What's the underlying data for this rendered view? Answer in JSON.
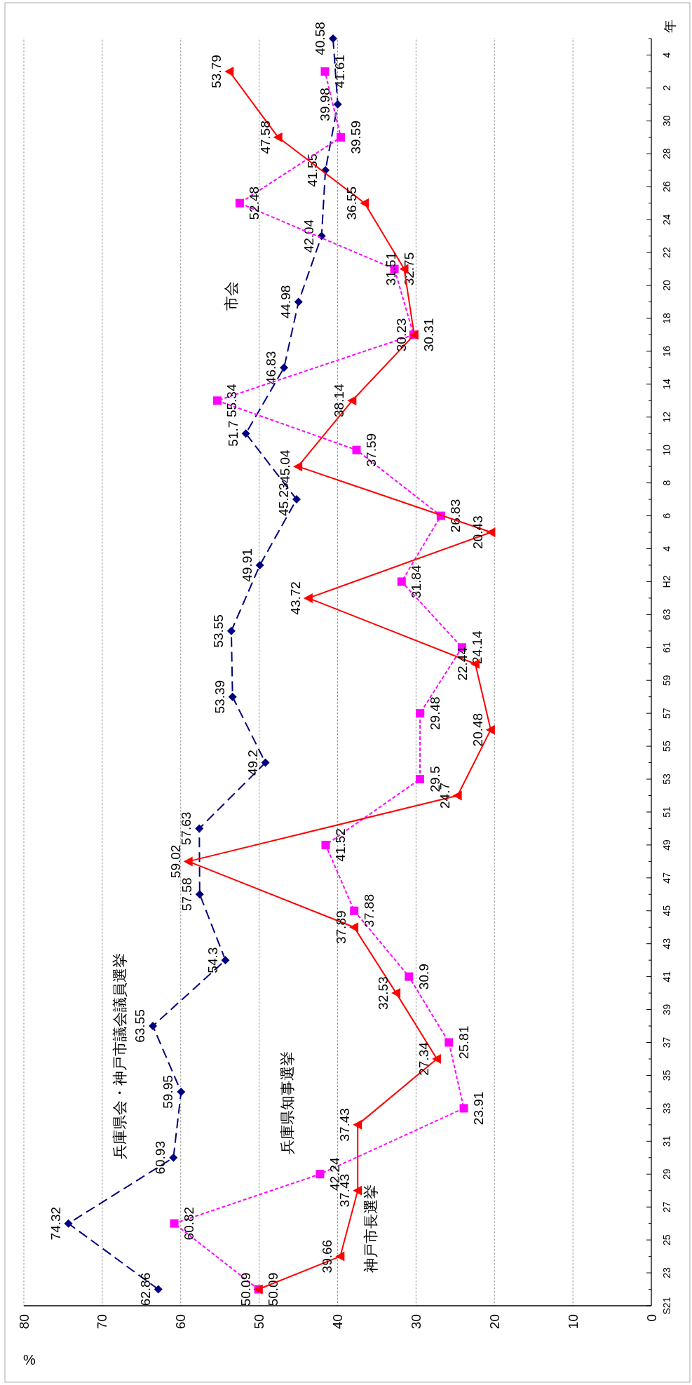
{
  "chart_data": {
    "type": "line",
    "orientation": "horizontal",
    "xlabel": "%",
    "ylabel": "年",
    "xlim": [
      80,
      0
    ],
    "xticks": [
      0,
      10,
      20,
      30,
      40,
      50,
      60,
      70,
      80
    ],
    "grid": "x",
    "data_labels": true,
    "categories": [
      null,
      "4",
      null,
      "2",
      null,
      "30",
      null,
      "28",
      null,
      "26",
      null,
      "24",
      null,
      "22",
      null,
      "20",
      null,
      "18",
      null,
      "16",
      null,
      "14",
      null,
      "12",
      null,
      "10",
      null,
      "8",
      null,
      "6",
      null,
      "4",
      null,
      "H2",
      null,
      "63",
      null,
      "61",
      null,
      "59",
      null,
      "57",
      null,
      "55",
      null,
      "53",
      null,
      "51",
      null,
      "49",
      null,
      "47",
      null,
      "45",
      null,
      "43",
      null,
      "41",
      null,
      "39",
      null,
      "37",
      null,
      "35",
      null,
      "33",
      null,
      "31",
      null,
      "29",
      null,
      "27",
      null,
      "25",
      null,
      "23",
      null,
      "S21"
    ],
    "annotations": [
      "市会"
    ],
    "series": [
      {
        "name": "兵庫県会・神戸市議会議員選挙",
        "color": "#000080",
        "marker": "diamond",
        "line_style": "dashed",
        "values": [
          40.58,
          null,
          null,
          null,
          39.98,
          null,
          null,
          null,
          41.55,
          null,
          null,
          null,
          42.04,
          null,
          null,
          null,
          44.98,
          null,
          null,
          null,
          46.83,
          null,
          null,
          null,
          51.7,
          null,
          null,
          null,
          45.23,
          null,
          null,
          null,
          49.91,
          null,
          null,
          null,
          53.55,
          null,
          null,
          null,
          53.39,
          null,
          null,
          null,
          49.2,
          null,
          null,
          null,
          57.63,
          null,
          null,
          null,
          57.58,
          null,
          null,
          null,
          54.3,
          null,
          null,
          null,
          63.55,
          null,
          null,
          null,
          59.95,
          null,
          null,
          null,
          60.93,
          null,
          null,
          null,
          74.32,
          null,
          null,
          null,
          62.86,
          null
        ]
      },
      {
        "name": "兵庫県知事選挙",
        "color": "#ff00ff",
        "marker": "square",
        "line_style": "dotted",
        "values": [
          null,
          null,
          41.61,
          null,
          null,
          null,
          39.59,
          null,
          null,
          null,
          52.48,
          null,
          null,
          null,
          32.75,
          null,
          null,
          null,
          30.31,
          null,
          null,
          null,
          55.34,
          null,
          null,
          37.59,
          null,
          null,
          null,
          26.83,
          null,
          null,
          null,
          31.84,
          null,
          null,
          null,
          24.14,
          null,
          null,
          null,
          29.48,
          null,
          null,
          null,
          29.5,
          null,
          null,
          null,
          41.52,
          null,
          null,
          null,
          37.88,
          null,
          null,
          null,
          30.9,
          null,
          null,
          null,
          25.81,
          null,
          null,
          null,
          23.91,
          null,
          null,
          null,
          42.24,
          null,
          null,
          60.82,
          null,
          null,
          null,
          50.09,
          null
        ]
      },
      {
        "name": "神戸市長選挙",
        "color": "#ff0000",
        "marker": "triangle",
        "line_style": "solid",
        "values": [
          null,
          null,
          53.79,
          null,
          null,
          null,
          47.58,
          null,
          null,
          null,
          36.55,
          null,
          null,
          null,
          31.51,
          null,
          null,
          null,
          30.23,
          null,
          null,
          null,
          38.14,
          null,
          null,
          null,
          45.04,
          null,
          null,
          null,
          20.43,
          null,
          null,
          null,
          43.72,
          null,
          null,
          null,
          22.44,
          null,
          null,
          null,
          20.48,
          null,
          null,
          null,
          24.7,
          null,
          null,
          null,
          59.02,
          null,
          null,
          null,
          37.89,
          null,
          null,
          null,
          32.53,
          null,
          null,
          null,
          27.34,
          null,
          null,
          null,
          37.43,
          null,
          null,
          null,
          37.43,
          null,
          null,
          null,
          39.66,
          null,
          50.09,
          null
        ]
      }
    ]
  }
}
